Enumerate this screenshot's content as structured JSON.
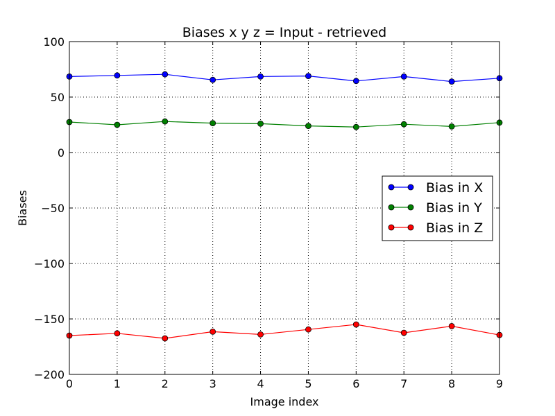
{
  "chart_data": {
    "type": "line",
    "title": "Biases  x y z = Input - retrieved",
    "xlabel": "Image index",
    "ylabel": "Biases",
    "xlim": [
      0,
      9
    ],
    "ylim": [
      -200,
      100
    ],
    "xticks": [
      0,
      1,
      2,
      3,
      4,
      5,
      6,
      7,
      8,
      9
    ],
    "yticks": [
      100,
      50,
      0,
      -50,
      -100,
      -150,
      -200
    ],
    "ytick_labels": [
      "100",
      "50",
      "0",
      "−50",
      "−100",
      "−150",
      "−200"
    ],
    "grid": true,
    "legend_position": "center-right",
    "x": [
      0,
      1,
      2,
      3,
      4,
      5,
      6,
      7,
      8,
      9
    ],
    "series": [
      {
        "name": "Bias in X",
        "color": "#0000ff",
        "values": [
          68.5,
          69.5,
          70.5,
          65.5,
          68.5,
          69.0,
          64.5,
          68.5,
          64.0,
          67.0
        ]
      },
      {
        "name": "Bias in Y",
        "color": "#008000",
        "values": [
          27.5,
          25.0,
          28.0,
          26.5,
          26.0,
          24.0,
          23.0,
          25.5,
          23.5,
          27.0
        ]
      },
      {
        "name": "Bias in Z",
        "color": "#ff0000",
        "values": [
          -165.0,
          -163.0,
          -167.5,
          -161.5,
          -164.0,
          -159.5,
          -155.0,
          -162.5,
          -156.5,
          -164.5
        ]
      }
    ]
  }
}
